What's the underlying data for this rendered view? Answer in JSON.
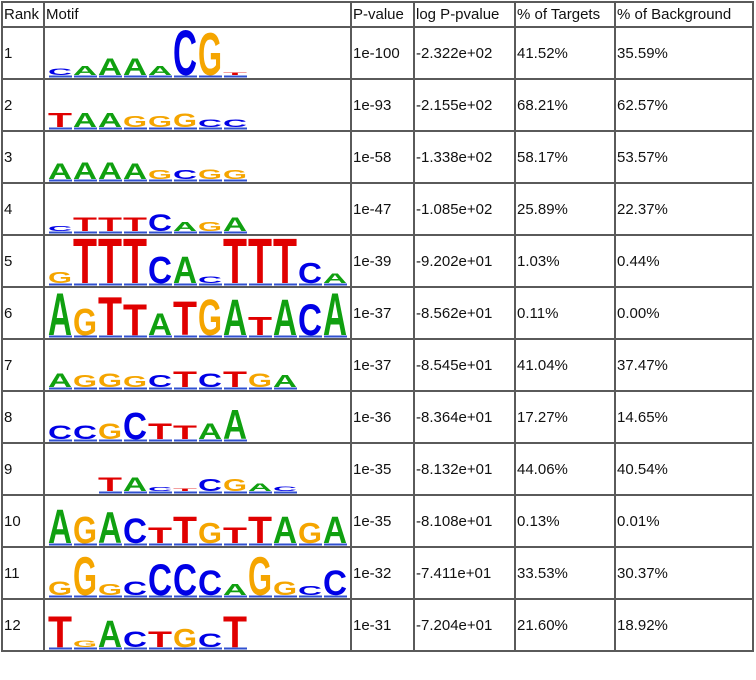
{
  "colors": {
    "A": "#10a010",
    "C": "#0000e6",
    "G": "#f5a500",
    "T": "#e00000"
  },
  "headers": {
    "rank": "Rank",
    "motif": "Motif",
    "pvalue": "P-value",
    "logp": "log P-pvalue",
    "targets": "% of Targets",
    "background": "% of Background"
  },
  "rows": [
    {
      "rank": "1",
      "pvalue": "1e-100",
      "logp": "-2.322e+02",
      "targets": "41.52%",
      "background": "35.59%",
      "logo": [
        [
          "C",
          0.15
        ],
        [
          "A",
          0.2
        ],
        [
          "A",
          0.38
        ],
        [
          "A",
          0.38
        ],
        [
          "A",
          0.2
        ],
        [
          "C",
          1.0
        ],
        [
          "G",
          0.95
        ],
        [
          "T",
          0.05
        ]
      ]
    },
    {
      "rank": "2",
      "pvalue": "1e-93",
      "logp": "-2.155e+02",
      "targets": "68.21%",
      "background": "62.57%",
      "logo": [
        [
          "T",
          0.32
        ],
        [
          "A",
          0.32
        ],
        [
          "A",
          0.32
        ],
        [
          "G",
          0.25
        ],
        [
          "G",
          0.25
        ],
        [
          "G",
          0.3
        ],
        [
          "C",
          0.18
        ],
        [
          "C",
          0.18
        ]
      ]
    },
    {
      "rank": "3",
      "pvalue": "1e-58",
      "logp": "-1.338e+02",
      "targets": "58.17%",
      "background": "53.57%",
      "logo": [
        [
          "A",
          0.35
        ],
        [
          "A",
          0.38
        ],
        [
          "A",
          0.38
        ],
        [
          "A",
          0.35
        ],
        [
          "G",
          0.2
        ],
        [
          "C",
          0.2
        ],
        [
          "G",
          0.22
        ],
        [
          "G",
          0.2
        ]
      ]
    },
    {
      "rank": "4",
      "pvalue": "1e-47",
      "logp": "-1.085e+02",
      "targets": "25.89%",
      "background": "22.37%",
      "logo": [
        [
          "C",
          0.12
        ],
        [
          "T",
          0.3
        ],
        [
          "T",
          0.3
        ],
        [
          "T",
          0.3
        ],
        [
          "C",
          0.38
        ],
        [
          "A",
          0.2
        ],
        [
          "G",
          0.2
        ],
        [
          "A",
          0.3
        ]
      ]
    },
    {
      "rank": "5",
      "pvalue": "1e-39",
      "logp": "-9.202e+01",
      "targets": "1.03%",
      "background": "0.44%",
      "logo": [
        [
          "G",
          0.25
        ],
        [
          "T",
          1.0
        ],
        [
          "T",
          1.0
        ],
        [
          "T",
          1.0
        ],
        [
          "C",
          0.6
        ],
        [
          "A",
          0.6
        ],
        [
          "C",
          0.15
        ],
        [
          "T",
          1.0
        ],
        [
          "T",
          1.0
        ],
        [
          "T",
          1.0
        ],
        [
          "C",
          0.45
        ],
        [
          "A",
          0.22
        ]
      ]
    },
    {
      "rank": "6",
      "pvalue": "1e-37",
      "logp": "-8.562e+01",
      "targets": "0.11%",
      "background": "0.00%",
      "logo": [
        [
          "A",
          0.95
        ],
        [
          "G",
          0.6
        ],
        [
          "T",
          0.85
        ],
        [
          "T",
          0.7
        ],
        [
          "A",
          0.5
        ],
        [
          "T",
          0.75
        ],
        [
          "G",
          0.8
        ],
        [
          "A",
          0.8
        ],
        [
          "T",
          0.4
        ],
        [
          "A",
          0.8
        ],
        [
          "C",
          0.7
        ],
        [
          "A",
          0.95
        ]
      ]
    },
    {
      "rank": "7",
      "pvalue": "1e-37",
      "logp": "-8.545e+01",
      "targets": "41.04%",
      "background": "37.47%",
      "logo": [
        [
          "A",
          0.3
        ],
        [
          "G",
          0.28
        ],
        [
          "G",
          0.3
        ],
        [
          "G",
          0.25
        ],
        [
          "C",
          0.28
        ],
        [
          "T",
          0.35
        ],
        [
          "C",
          0.3
        ],
        [
          "T",
          0.35
        ],
        [
          "G",
          0.3
        ],
        [
          "A",
          0.28
        ]
      ]
    },
    {
      "rank": "8",
      "pvalue": "1e-36",
      "logp": "-8.364e+01",
      "targets": "17.27%",
      "background": "14.65%",
      "logo": [
        [
          "C",
          0.3
        ],
        [
          "C",
          0.3
        ],
        [
          "G",
          0.35
        ],
        [
          "C",
          0.6
        ],
        [
          "T",
          0.35
        ],
        [
          "T",
          0.3
        ],
        [
          "A",
          0.35
        ],
        [
          "A",
          0.65
        ]
      ]
    },
    {
      "rank": "9",
      "pvalue": "1e-35",
      "logp": "-8.132e+01",
      "targets": "44.06%",
      "background": "40.54%",
      "logo": [
        [
          "",
          0
        ],
        [
          "",
          0
        ],
        [
          "T",
          0.3
        ],
        [
          "A",
          0.3
        ],
        [
          "C",
          0.08
        ],
        [
          "T",
          0.05
        ],
        [
          "C",
          0.28
        ],
        [
          "G",
          0.28
        ],
        [
          "A",
          0.18
        ],
        [
          "C",
          0.1
        ]
      ]
    },
    {
      "rank": "10",
      "pvalue": "1e-35",
      "logp": "-8.108e+01",
      "targets": "0.13%",
      "background": "0.01%",
      "logo": [
        [
          "A",
          0.75
        ],
        [
          "G",
          0.6
        ],
        [
          "A",
          0.7
        ],
        [
          "C",
          0.55
        ],
        [
          "T",
          0.35
        ],
        [
          "T",
          0.6
        ],
        [
          "G",
          0.45
        ],
        [
          "T",
          0.35
        ],
        [
          "T",
          0.6
        ],
        [
          "A",
          0.6
        ],
        [
          "G",
          0.45
        ],
        [
          "A",
          0.6
        ]
      ]
    },
    {
      "rank": "11",
      "pvalue": "1e-32",
      "logp": "-7.411e+01",
      "targets": "33.53%",
      "background": "30.37%",
      "logo": [
        [
          "G",
          0.3
        ],
        [
          "G",
          0.85
        ],
        [
          "G",
          0.25
        ],
        [
          "C",
          0.3
        ],
        [
          "C",
          0.7
        ],
        [
          "C",
          0.7
        ],
        [
          "C",
          0.55
        ],
        [
          "A",
          0.25
        ],
        [
          "G",
          0.85
        ],
        [
          "G",
          0.3
        ],
        [
          "C",
          0.2
        ],
        [
          "C",
          0.55
        ]
      ]
    },
    {
      "rank": "12",
      "pvalue": "1e-31",
      "logp": "-7.204e+01",
      "targets": "21.60%",
      "background": "18.92%",
      "logo": [
        [
          "T",
          0.7
        ],
        [
          "G",
          0.15
        ],
        [
          "A",
          0.6
        ],
        [
          "C",
          0.35
        ],
        [
          "T",
          0.35
        ],
        [
          "G",
          0.4
        ],
        [
          "C",
          0.3
        ],
        [
          "T",
          0.7
        ]
      ]
    }
  ]
}
